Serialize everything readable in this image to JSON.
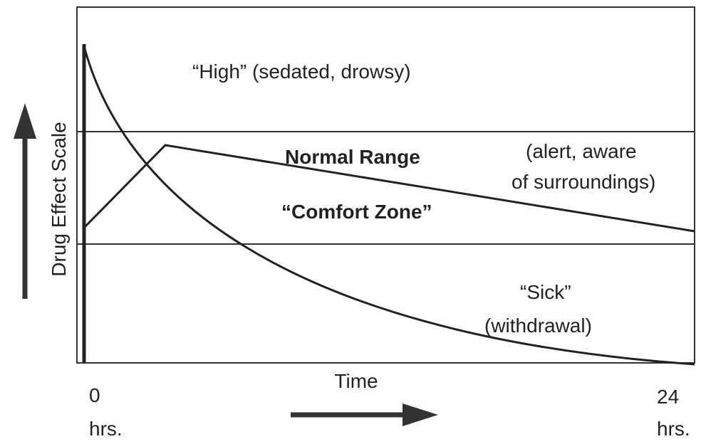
{
  "high_zone": {
    "label": "“High”  (sedated, drowsy)"
  },
  "normal_zone": {
    "label": "Normal Range",
    "subtitle": "“Comfort Zone”",
    "note_lines": [
      "(alert, aware",
      "of surroundings)"
    ]
  },
  "sick_zone": {
    "label": "“Sick”",
    "note": "(withdrawal)"
  },
  "y_axis": {
    "label": "Drug Effect Scale"
  },
  "x_axis": {
    "label": "Time",
    "start": {
      "value": "0",
      "unit": "hrs."
    },
    "end": {
      "value": "24",
      "unit": "hrs."
    }
  }
}
